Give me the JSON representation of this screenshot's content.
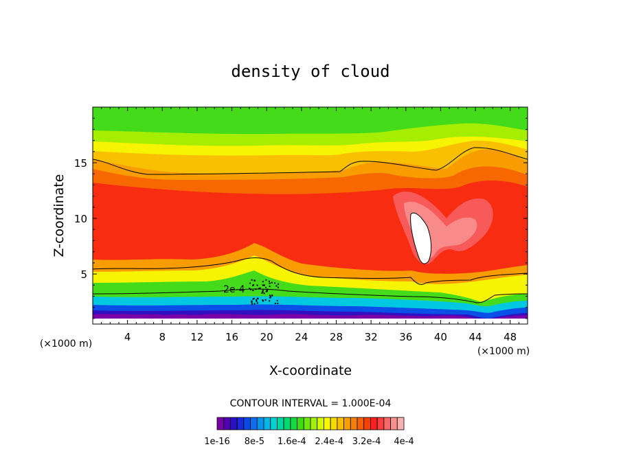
{
  "chart_data": {
    "type": "heatmap",
    "title": "density of cloud",
    "xlabel": "X-coordinate",
    "ylabel": "Z-coordinate",
    "x_unit_left": "(×1000 m)",
    "x_unit_right": "(×1000 m)",
    "xlim": [
      0,
      50
    ],
    "ylim": [
      0.5,
      20
    ],
    "x_ticks": [
      4,
      8,
      12,
      16,
      20,
      24,
      28,
      32,
      36,
      40,
      44,
      48
    ],
    "x_tick_labels": [
      "4",
      "8",
      "12",
      "16",
      "20",
      "24",
      "28",
      "32",
      "36",
      "40",
      "44",
      "48"
    ],
    "y_ticks": [
      5,
      10,
      15
    ],
    "y_tick_labels": [
      "5",
      "10",
      "15"
    ],
    "contour_interval_text": "CONTOUR INTERVAL = 1.000E-04",
    "contour_label": "2e-4",
    "colorbar": {
      "tick_labels": [
        "1e-16",
        "8e-5",
        "1.6e-4",
        "2.4e-4",
        "3.2e-4",
        "4e-4"
      ],
      "colors": [
        "#7a00a8",
        "#5000b4",
        "#2a10c0",
        "#1a2ad8",
        "#0a4ae6",
        "#0a70f0",
        "#0096f0",
        "#00b8e8",
        "#00d2d2",
        "#00d8a0",
        "#00d870",
        "#18d840",
        "#40dc10",
        "#70e800",
        "#a4f000",
        "#d4f800",
        "#f8f800",
        "#f8dc00",
        "#f8c000",
        "#f8a000",
        "#f88000",
        "#f86000",
        "#f84000",
        "#f82020",
        "#f84040",
        "#f86868",
        "#f89090",
        "#f8b0b0"
      ]
    },
    "fill_colors": {
      "top_green": "#44dc1a",
      "yellow_green": "#a6ee00",
      "yellow": "#f6f400",
      "orange_yellow": "#f8c000",
      "orange": "#f89c00",
      "orange_red": "#f86800",
      "red": "#f82c10",
      "bright_red": "#f81a1a",
      "pink1": "#f85a5a",
      "pink2": "#f88a8a",
      "white": "#ffffff",
      "cyan": "#00c8e0",
      "blue": "#0a50e8",
      "dark_blue": "#3010c0",
      "purple": "#7a00a8"
    }
  }
}
